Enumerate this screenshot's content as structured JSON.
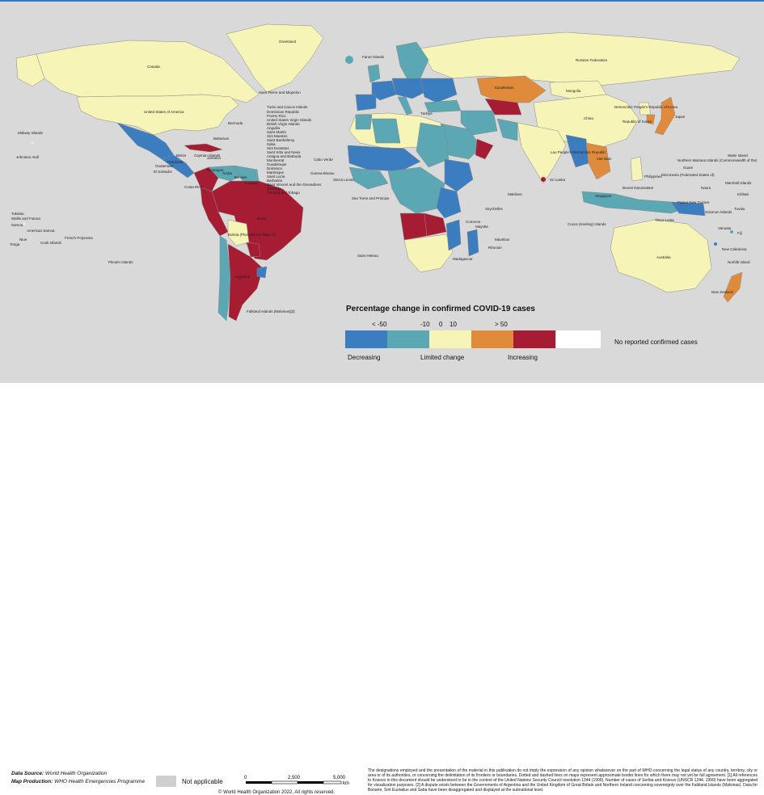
{
  "legend": {
    "title": "Percentage change in confirmed COVID-19 cases",
    "ticks": [
      "< -50",
      "-10",
      "0",
      "10",
      "> 50"
    ],
    "categories": [
      "Decreasing",
      "Limited change",
      "Increasing"
    ],
    "colors": {
      "lt_minus50": "#3b7dbf",
      "minus50_minus10": "#5ba7b3",
      "minus10_10": "#f7f4b7",
      "10_50": "#e08a3c",
      "gt_50": "#a61c33",
      "no_cases": "#ffffff",
      "not_applicable": "#cfcfcf",
      "ocean": "#d9d9d9"
    },
    "no_cases_label": "No reported confirmed cases",
    "not_applicable_label": "Not applicable"
  },
  "map_labels": [
    "Greenland",
    "Canada",
    "United States of America",
    "Saint Pierre and Miquelon",
    "Bermuda",
    "Bahamas",
    "Turks and Caicos Islands",
    "Dominican Republic",
    "Puerto Rico",
    "United States Virgin Islands",
    "British Virgin Islands",
    "Anguilla",
    "Saint Martin",
    "Sint Maarten",
    "Saint Barthélemy",
    "Saba",
    "Sint Eustatius",
    "Saint Kitts and Nevis",
    "Antigua and Barbuda",
    "Montserrat",
    "Guadeloupe",
    "Dominica",
    "Martinique",
    "Saint Lucia",
    "Barbados",
    "Saint Vincent and the Grenadines",
    "Grenada",
    "Trinidad and Tobago",
    "Curaçao",
    "Bonaire",
    "Aruba",
    "Cayman Islands",
    "Jamaica",
    "Honduras",
    "Nicaragua",
    "El Salvador",
    "Guatemala",
    "Belize",
    "Costa Rica",
    "Brazil",
    "Bolivia (Plurinational State of)",
    "Argentina",
    "Falkland Islands (Malvinas)[2]",
    "Midway Islands",
    "Johnston Atoll",
    "Tokelau",
    "Wallis and Futuna",
    "Samoa",
    "American Samoa",
    "Niue",
    "Tonga",
    "Cook Islands",
    "French Polynesia",
    "Pitcairn Islands",
    "Faroe Islands",
    "Russian Federation",
    "Kazakhstan",
    "Mongolia",
    "China",
    "Democratic People's Republic of Korea",
    "Republic of Korea",
    "Japan",
    "Türkiye",
    "Cabo Verde",
    "Guinea-Bissau",
    "Sierra Leone",
    "Sao Tome and Principe",
    "Saint Helena",
    "Comoros",
    "Mayotte",
    "Réunion",
    "Seychelles",
    "Mauritius",
    "Madagascar",
    "Maldives",
    "Sri Lanka",
    "Lao People's Democratic Republic",
    "Viet Nam",
    "Philippines",
    "Singapore",
    "Brunei Darussalam",
    "Timor-Leste",
    "Cocos (Keeling) Islands",
    "Northern Mariana Islands (Commonwealth of the)",
    "Guam",
    "Micronesia (Federated States of)",
    "Wake Island",
    "Marshall Islands",
    "Nauru",
    "Kiribati",
    "Tuvalu",
    "Solomon Islands",
    "Vanuatu",
    "Fiji",
    "New Caledonia",
    "Norfolk Island",
    "New Zealand",
    "Papua New Guinea",
    "Australia"
  ],
  "footer": {
    "data_source_label": "Data Source:",
    "data_source_value": "World Health Organization",
    "map_production_label": "Map Production:",
    "map_production_value": "WHO Health Emergencies Programme",
    "scale_ticks": [
      "0",
      "2,500",
      "5,000"
    ],
    "scale_unit": "km",
    "copyright": "© World Health Organization  2022,  All rights reserved.",
    "disclaimer": "The designations employed and the presentation of the material in this publication do not imply the expression of any opinion whatsoever on the part of WHO concerning the legal status of any country, territory, city or area or of its authorities, or concerning the delimitation of its frontiers or boundaries. Dotted and dashed lines on maps represent approximate border lines for which there may not yet be full agreement. [1] All references to Kosovo in this document should be understood to be in the context of the United Nations Security Council resolution 1244 (1999). Number of cases of Serbia and Kosovo (UNSCR 1244, 1999) have been aggregated for visualization purposes. [2] A dispute exists between the Governments of Argentina and the United Kingdom of Great Britain and Northern Ireland concerning sovereignty over the Falkland Islands (Malvinas). Data for Bonaire, Sint Eustatius and Saba have been disaggregated and displayed at the subnational level."
  }
}
